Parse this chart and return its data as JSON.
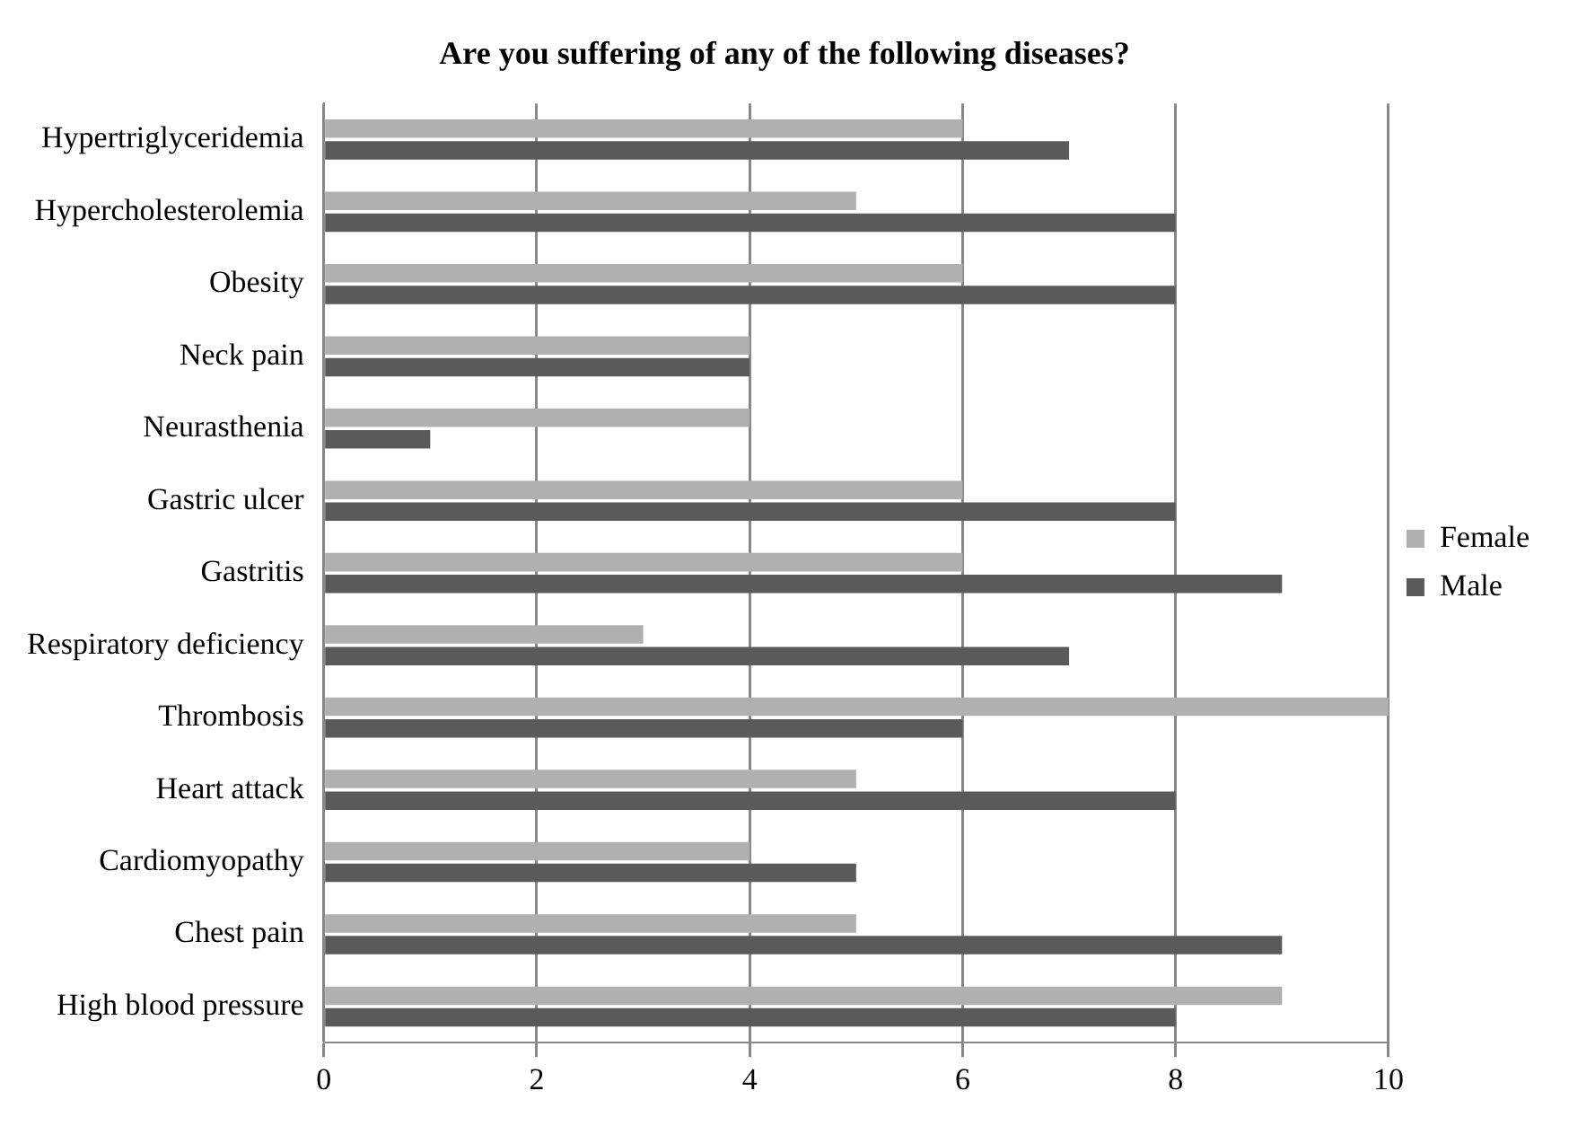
{
  "chart_data": {
    "type": "bar",
    "orientation": "horizontal",
    "title": "Are you suffering of any of the following diseases?",
    "categories": [
      "Hypertriglyceridemia",
      "Hypercholesterolemia",
      "Obesity",
      "Neck pain",
      "Neurasthenia",
      "Gastric ulcer",
      "Gastritis",
      "Respiratory deficiency",
      "Thrombosis",
      "Heart attack",
      "Cardiomyopathy",
      "Chest pain",
      "High blood pressure"
    ],
    "series": [
      {
        "name": "Female",
        "color": "#b0b0b0",
        "values": [
          6,
          5,
          6,
          4,
          4,
          6,
          6,
          3,
          10,
          5,
          4,
          5,
          9
        ]
      },
      {
        "name": "Male",
        "color": "#5a5a5a",
        "values": [
          7,
          8,
          8,
          4,
          1,
          8,
          9,
          7,
          6,
          8,
          5,
          9,
          8
        ]
      }
    ],
    "xlim": [
      0,
      10
    ],
    "xticks": [
      0,
      2,
      4,
      6,
      8,
      10
    ],
    "grid": "x",
    "legend": "right"
  }
}
